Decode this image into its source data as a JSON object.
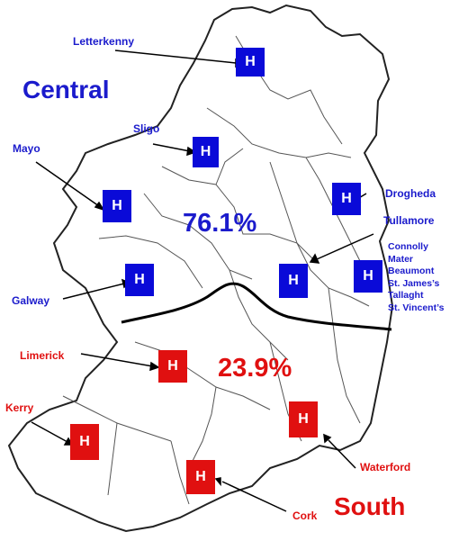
{
  "regions": {
    "central": {
      "name": "Central",
      "percentage": "76.1%",
      "color": "#1b1bcc"
    },
    "south": {
      "name": "South",
      "percentage": "23.9%",
      "color": "#e01010"
    }
  },
  "hospital_marker": "H",
  "hospitals_central": {
    "letterkenny": "Letterkenny",
    "sligo": "Sligo",
    "mayo": "Mayo",
    "galway": "Galway",
    "drogheda": "Drogheda",
    "tullamore": "Tullamore",
    "dublin": [
      "Connolly",
      "Mater",
      "Beaumont",
      "St. James’s",
      "Tallaght",
      "St. Vincent’s"
    ]
  },
  "hospitals_south": {
    "limerick": "Limerick",
    "kerry": "Kerry",
    "waterford": "Waterford",
    "cork": "Cork"
  }
}
